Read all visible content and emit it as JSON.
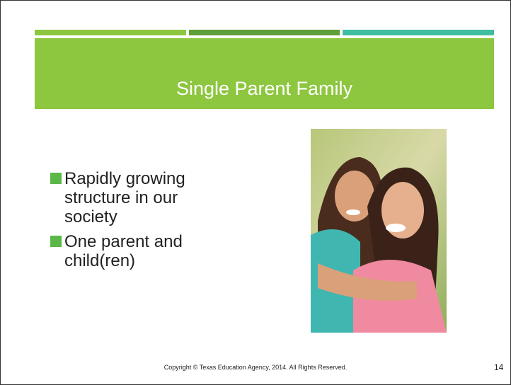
{
  "header": {
    "title": "Single Parent Family"
  },
  "bullets": [
    "Rapidly growing structure in our society",
    "One parent and child(ren)"
  ],
  "footer": {
    "copyright": "Copyright © Texas Education Agency, 2014. All Rights Reserved.",
    "page_number": 14
  }
}
